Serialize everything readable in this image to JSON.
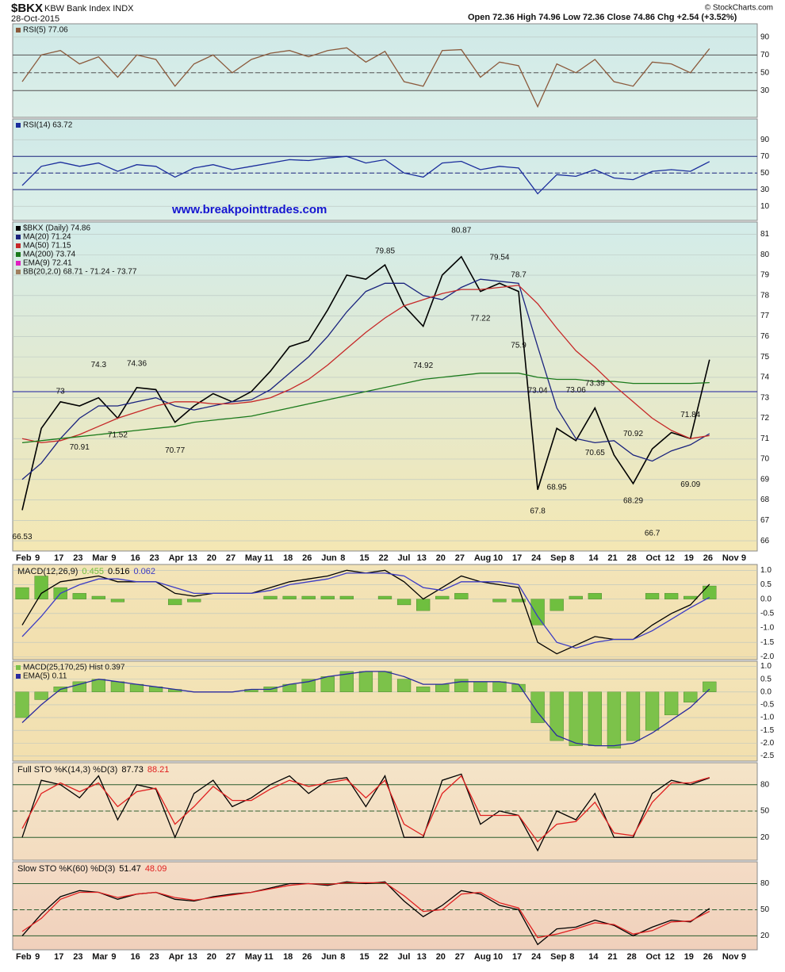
{
  "header": {
    "symbol": "$BKX",
    "name": "KBW Bank Index INDX",
    "date": "28-Oct-2015",
    "quote": "Open 72.36  High 74.96  Low 72.36  Close 74.86  Chg +2.54 (+3.52%)",
    "credit": "© StockCharts.com"
  },
  "website": "www.breakpointtrades.com",
  "chart_data": [
    {
      "type": "line",
      "legend": "stack",
      "ylim": [
        0,
        105
      ],
      "yticks": [
        30,
        50,
        70,
        90
      ],
      "ref_lines": [
        30,
        50,
        70
      ],
      "ref_color": "#555555",
      "series": [
        {
          "name": "RSI(5) 77.06",
          "color": "#8b5a3c",
          "values": [
            40,
            70,
            75,
            60,
            68,
            45,
            70,
            65,
            35,
            60,
            70,
            50,
            65,
            72,
            75,
            68,
            75,
            78,
            62,
            74,
            40,
            35,
            75,
            76,
            45,
            62,
            58,
            12,
            60,
            50,
            65,
            40,
            35,
            62,
            60,
            50,
            77.06,
            null,
            null
          ]
        }
      ]
    },
    {
      "type": "line",
      "legend": "stack",
      "ylim": [
        -7,
        115
      ],
      "yticks": [
        10,
        30,
        50,
        70,
        90
      ],
      "ref_lines": [
        30,
        50,
        70
      ],
      "ref_color": "#1a237e",
      "series": [
        {
          "name": "RSI(14) 63.72",
          "color": "#1a2d9c",
          "values": [
            35,
            58,
            63,
            58,
            62,
            52,
            60,
            58,
            45,
            56,
            60,
            54,
            58,
            62,
            66,
            65,
            68,
            70,
            62,
            66,
            50,
            45,
            62,
            64,
            54,
            58,
            56,
            25,
            48,
            46,
            54,
            44,
            42,
            52,
            54,
            52,
            63.72,
            null,
            null
          ]
        }
      ]
    },
    {
      "type": "line",
      "legend": "stack",
      "ylim": [
        65.5,
        81.6
      ],
      "yticks": [
        66,
        67,
        68,
        69,
        70,
        71,
        72,
        73,
        74,
        75,
        76,
        77,
        78,
        79,
        80,
        81
      ],
      "ref_lines": [
        73.3
      ],
      "ref_color": "#1a1aa0",
      "categories": [
        "Feb",
        "9",
        "17",
        "23",
        "Mar",
        "9",
        "16",
        "23",
        "Apr",
        "13",
        "20",
        "27",
        "May",
        "11",
        "18",
        "26",
        "Jun",
        "8",
        "15",
        "22",
        "Jul",
        "13",
        "20",
        "27",
        "Aug",
        "10",
        "17",
        "24",
        "Sep",
        "8",
        "14",
        "21",
        "28",
        "Oct",
        "12",
        "19",
        "26",
        "Nov",
        "9"
      ],
      "series": [
        {
          "name": "$BKX (Daily) 74.86",
          "color": "#000000",
          "values": [
            67.5,
            71.5,
            72.8,
            72.6,
            73.0,
            72.0,
            73.5,
            73.4,
            71.8,
            72.6,
            73.2,
            72.8,
            73.3,
            74.3,
            75.5,
            75.8,
            77.3,
            79.0,
            78.8,
            79.5,
            77.5,
            76.5,
            79.0,
            79.9,
            78.2,
            78.6,
            78.2,
            68.5,
            71.5,
            70.9,
            72.5,
            70.2,
            68.8,
            70.5,
            71.3,
            71.0,
            74.86,
            null,
            null
          ]
        },
        {
          "name": "MA(20) 71.24",
          "color": "#1a237e",
          "values": [
            69.0,
            69.8,
            71.0,
            72.0,
            72.6,
            72.6,
            72.8,
            73.0,
            72.6,
            72.4,
            72.6,
            72.8,
            72.9,
            73.4,
            74.2,
            75.0,
            76.0,
            77.2,
            78.2,
            78.6,
            78.6,
            78.0,
            77.8,
            78.4,
            78.8,
            78.7,
            78.6,
            75.5,
            72.5,
            71.0,
            70.8,
            70.9,
            70.2,
            69.9,
            70.4,
            70.7,
            71.24,
            null,
            null
          ]
        },
        {
          "name": "MA(50) 71.15",
          "color": "#c62828",
          "values": [
            71.0,
            70.8,
            70.9,
            71.2,
            71.6,
            72.0,
            72.3,
            72.6,
            72.8,
            72.8,
            72.7,
            72.7,
            72.8,
            73.0,
            73.4,
            73.9,
            74.6,
            75.4,
            76.2,
            76.9,
            77.5,
            77.8,
            78.1,
            78.3,
            78.3,
            78.4,
            78.5,
            77.6,
            76.4,
            75.3,
            74.5,
            73.6,
            72.8,
            72.0,
            71.4,
            71.0,
            71.15,
            null,
            null
          ]
        },
        {
          "name": "MA(200) 73.74",
          "color": "#1b7a1b",
          "values": [
            70.8,
            70.9,
            71.0,
            71.1,
            71.2,
            71.3,
            71.4,
            71.5,
            71.6,
            71.8,
            71.9,
            72.0,
            72.1,
            72.3,
            72.5,
            72.7,
            72.9,
            73.1,
            73.3,
            73.5,
            73.7,
            73.9,
            74.0,
            74.1,
            74.2,
            74.2,
            74.2,
            74.0,
            73.9,
            73.9,
            73.8,
            73.8,
            73.7,
            73.7,
            73.7,
            73.7,
            73.74,
            null,
            null
          ]
        }
      ],
      "extra_legend": [
        {
          "text": "EMA(9) 72.41",
          "color": "#e020c0"
        },
        {
          "text": "BB(20,2.0) 68.71 - 71.24 - 73.77",
          "color": "#a08060"
        }
      ],
      "high_labels": [
        null,
        null,
        73.0,
        null,
        74.3,
        null,
        74.36,
        null,
        null,
        null,
        null,
        null,
        null,
        null,
        null,
        null,
        null,
        null,
        null,
        79.85,
        null,
        null,
        null,
        80.87,
        null,
        79.54,
        78.7,
        73.04,
        null,
        73.06,
        73.39,
        null,
        70.92,
        null,
        null,
        71.84,
        null,
        null,
        null
      ],
      "low_labels": [
        66.53,
        null,
        null,
        70.91,
        null,
        71.52,
        null,
        null,
        70.77,
        null,
        null,
        null,
        null,
        null,
        null,
        null,
        null,
        null,
        null,
        null,
        null,
        74.92,
        null,
        null,
        77.22,
        null,
        75.9,
        67.8,
        68.95,
        null,
        70.65,
        null,
        68.29,
        66.7,
        null,
        69.09,
        null,
        null,
        null
      ]
    },
    {
      "type": "line",
      "legend": "inline",
      "title": "MACD(12,26,9)",
      "ylim": [
        -2.1,
        1.2
      ],
      "yticks": [
        {
          "value": 1,
          "label": "1.0"
        },
        0.5,
        {
          "value": 0,
          "label": "0.0"
        },
        -0.5,
        {
          "value": -1,
          "label": "-1.0"
        },
        -1.5,
        {
          "value": -2,
          "label": "-2.0"
        }
      ],
      "series": [
        {
          "name": "0.455",
          "color": "#6fbf3f",
          "style": "histogram",
          "values": [
            0.4,
            0.8,
            0.4,
            0.2,
            0.1,
            -0.1,
            0.0,
            0.0,
            -0.2,
            -0.1,
            0.0,
            0.0,
            0.0,
            0.1,
            0.1,
            0.1,
            0.1,
            0.1,
            0.0,
            0.1,
            -0.2,
            -0.4,
            0.1,
            0.2,
            0.0,
            -0.1,
            -0.1,
            -0.9,
            -0.4,
            0.1,
            0.2,
            0.0,
            0.0,
            0.2,
            0.2,
            0.1,
            0.455,
            null,
            null
          ]
        },
        {
          "name": "0.516",
          "color": "#000000",
          "values": [
            -0.9,
            0.2,
            0.6,
            0.7,
            0.8,
            0.6,
            0.6,
            0.6,
            0.2,
            0.1,
            0.2,
            0.2,
            0.2,
            0.4,
            0.6,
            0.7,
            0.8,
            1.0,
            0.9,
            1.0,
            0.6,
            0.0,
            0.4,
            0.8,
            0.6,
            0.5,
            0.4,
            -1.5,
            -1.9,
            -1.6,
            -1.3,
            -1.4,
            -1.4,
            -0.9,
            -0.5,
            -0.2,
            0.516,
            null,
            null
          ]
        },
        {
          "name": "0.062",
          "color": "#3b3bc4",
          "values": [
            -1.3,
            -0.6,
            0.2,
            0.5,
            0.7,
            0.7,
            0.6,
            0.6,
            0.4,
            0.2,
            0.2,
            0.2,
            0.2,
            0.3,
            0.5,
            0.6,
            0.7,
            0.9,
            0.9,
            0.9,
            0.8,
            0.4,
            0.3,
            0.6,
            0.6,
            0.6,
            0.5,
            -0.6,
            -1.5,
            -1.7,
            -1.5,
            -1.4,
            -1.4,
            -1.1,
            -0.7,
            -0.3,
            0.062,
            null,
            null
          ]
        }
      ]
    },
    {
      "type": "line",
      "legend": "stack",
      "ylim": [
        -2.7,
        1.2
      ],
      "yticks": [
        {
          "value": 1,
          "label": "1.0"
        },
        0.5,
        {
          "value": 0,
          "label": "0.0"
        },
        -0.5,
        {
          "value": -1,
          "label": "-1.0"
        },
        -1.5,
        {
          "value": -2,
          "label": "-2.0"
        },
        -2.5
      ],
      "series": [
        {
          "name": "MACD(25,170,25) Hist 0.397",
          "color": "#7cc24a",
          "style": "histogram",
          "values": [
            -1.0,
            -0.3,
            0.2,
            0.4,
            0.5,
            0.4,
            0.3,
            0.2,
            0.1,
            0.0,
            0.0,
            0.0,
            0.1,
            0.2,
            0.3,
            0.5,
            0.6,
            0.8,
            0.8,
            0.8,
            0.5,
            0.2,
            0.3,
            0.5,
            0.4,
            0.4,
            0.3,
            -1.2,
            -1.9,
            -2.1,
            -2.1,
            -2.2,
            -1.9,
            -1.5,
            -0.9,
            -0.4,
            0.397,
            null,
            null
          ]
        },
        {
          "name": "EMA(5) 0.11",
          "color": "#2a2aa0",
          "values": [
            -1.2,
            -0.5,
            0.1,
            0.3,
            0.5,
            0.4,
            0.3,
            0.2,
            0.1,
            0.0,
            0.0,
            0.0,
            0.1,
            0.1,
            0.3,
            0.4,
            0.6,
            0.7,
            0.8,
            0.8,
            0.6,
            0.3,
            0.3,
            0.4,
            0.4,
            0.4,
            0.3,
            -0.8,
            -1.7,
            -2.0,
            -2.1,
            -2.1,
            -2.0,
            -1.6,
            -1.1,
            -0.6,
            0.11,
            null,
            null
          ]
        }
      ]
    },
    {
      "type": "line",
      "legend": "inline",
      "title": "Full STO %K(14,3) %D(3)",
      "ylim": [
        -6,
        105
      ],
      "yticks": [
        20,
        50,
        80
      ],
      "ref_lines": [
        20,
        50,
        80
      ],
      "ref_color": "#2e5e2e",
      "series": [
        {
          "name": "87.73",
          "color": "#000000",
          "values": [
            20,
            85,
            80,
            65,
            90,
            40,
            80,
            75,
            20,
            70,
            85,
            55,
            65,
            80,
            90,
            70,
            85,
            88,
            55,
            90,
            20,
            20,
            85,
            92,
            35,
            50,
            45,
            5,
            50,
            40,
            70,
            20,
            20,
            70,
            85,
            80,
            87.73,
            null,
            null
          ]
        },
        {
          "name": "88.21",
          "color": "#e02020",
          "values": [
            30,
            70,
            82,
            72,
            82,
            55,
            72,
            76,
            35,
            55,
            78,
            62,
            62,
            75,
            85,
            78,
            82,
            86,
            65,
            85,
            35,
            22,
            70,
            90,
            45,
            45,
            45,
            15,
            35,
            38,
            60,
            25,
            22,
            60,
            82,
            82,
            88.21,
            null,
            null
          ]
        }
      ]
    },
    {
      "type": "line",
      "legend": "inline",
      "title": "Slow STO %K(60) %D(3)",
      "ylim": [
        4,
        105
      ],
      "yticks": [
        20,
        50,
        80
      ],
      "ref_lines": [
        20,
        50,
        80
      ],
      "ref_color": "#2e5e2e",
      "categories": [
        "Feb",
        "9",
        "17",
        "23",
        "Mar",
        "9",
        "16",
        "23",
        "Apr",
        "13",
        "20",
        "27",
        "May",
        "11",
        "18",
        "26",
        "Jun",
        "8",
        "15",
        "22",
        "Jul",
        "13",
        "20",
        "27",
        "Aug",
        "10",
        "17",
        "24",
        "Sep",
        "8",
        "14",
        "21",
        "28",
        "Oct",
        "12",
        "19",
        "26",
        "Nov",
        "9"
      ],
      "series": [
        {
          "name": "51.47",
          "color": "#000000",
          "values": [
            20,
            45,
            65,
            72,
            70,
            62,
            68,
            70,
            62,
            60,
            65,
            68,
            70,
            75,
            80,
            80,
            78,
            82,
            80,
            82,
            60,
            42,
            55,
            72,
            68,
            55,
            50,
            10,
            28,
            30,
            38,
            32,
            20,
            30,
            38,
            36,
            51.47,
            null,
            null
          ]
        },
        {
          "name": "48.09",
          "color": "#e02020",
          "values": [
            25,
            40,
            62,
            70,
            70,
            64,
            68,
            70,
            64,
            61,
            64,
            67,
            70,
            74,
            78,
            80,
            79,
            81,
            81,
            81,
            66,
            48,
            50,
            68,
            70,
            58,
            52,
            18,
            22,
            28,
            35,
            33,
            22,
            26,
            36,
            37,
            48.09,
            null,
            null
          ]
        }
      ]
    }
  ]
}
